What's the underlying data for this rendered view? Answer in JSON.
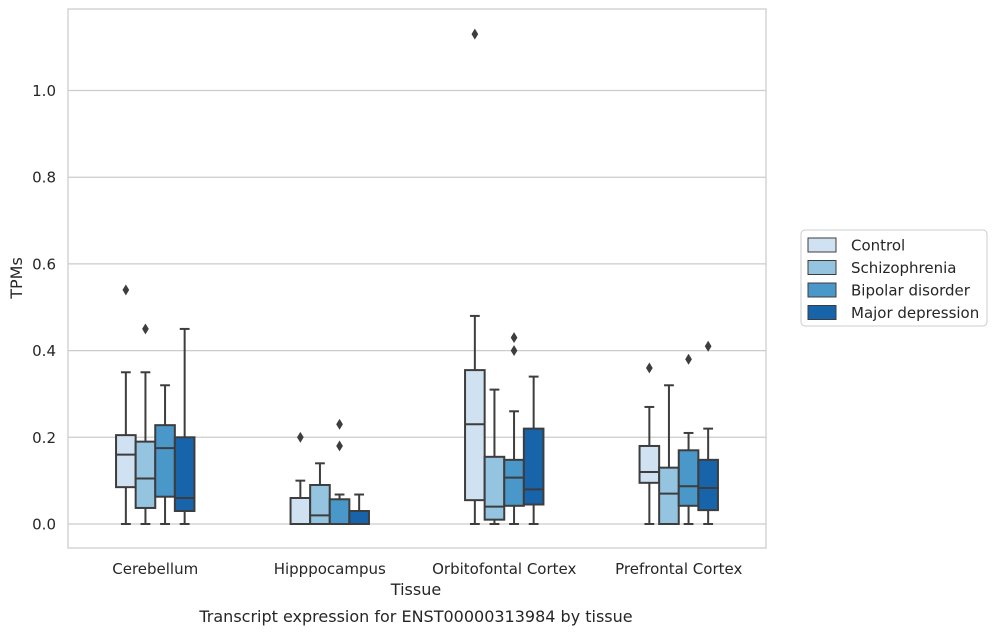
{
  "chart_data": {
    "type": "box",
    "title": "",
    "caption": "Transcript expression for ENST00000313984 by tissue",
    "xlabel": "Tissue",
    "ylabel": "TPMs",
    "ylim": [
      -0.055,
      1.19
    ],
    "yticks": [
      0.0,
      0.2,
      0.4,
      0.6,
      0.8,
      1.0
    ],
    "ytick_labels": [
      "0.0",
      "0.2",
      "0.4",
      "0.6",
      "0.8",
      "1.0"
    ],
    "grid": "horizontal",
    "legend_position": "right-outside",
    "categories": [
      "Cerebellum",
      "Hipppocampus",
      "Orbitofontal Cortex",
      "Prefrontal Cortex"
    ],
    "series": [
      {
        "name": "Control",
        "color": "#d0e1f2",
        "boxes": [
          {
            "whislo": 0.0,
            "q1": 0.085,
            "med": 0.16,
            "q3": 0.205,
            "whishi": 0.35,
            "fliers": [
              0.54
            ]
          },
          {
            "whislo": 0.0,
            "q1": 0.0,
            "med": 0.0,
            "q3": 0.06,
            "whishi": 0.1,
            "fliers": [
              0.2
            ]
          },
          {
            "whislo": 0.0,
            "q1": 0.055,
            "med": 0.23,
            "q3": 0.355,
            "whishi": 0.48,
            "fliers": [
              1.13
            ]
          },
          {
            "whislo": 0.0,
            "q1": 0.095,
            "med": 0.12,
            "q3": 0.18,
            "whishi": 0.27,
            "fliers": [
              0.36
            ]
          }
        ]
      },
      {
        "name": "Schizophrenia",
        "color": "#94c4df",
        "boxes": [
          {
            "whislo": 0.0,
            "q1": 0.037,
            "med": 0.105,
            "q3": 0.19,
            "whishi": 0.35,
            "fliers": [
              0.45
            ]
          },
          {
            "whislo": 0.0,
            "q1": 0.0,
            "med": 0.02,
            "q3": 0.09,
            "whishi": 0.14,
            "fliers": []
          },
          {
            "whislo": 0.0,
            "q1": 0.01,
            "med": 0.04,
            "q3": 0.155,
            "whishi": 0.31,
            "fliers": []
          },
          {
            "whislo": 0.0,
            "q1": 0.0,
            "med": 0.07,
            "q3": 0.13,
            "whishi": 0.32,
            "fliers": []
          }
        ]
      },
      {
        "name": "Bipolar disorder",
        "color": "#4a98c9",
        "boxes": [
          {
            "whislo": 0.0,
            "q1": 0.063,
            "med": 0.175,
            "q3": 0.228,
            "whishi": 0.32,
            "fliers": []
          },
          {
            "whislo": 0.0,
            "q1": 0.0,
            "med": 0.0,
            "q3": 0.057,
            "whishi": 0.068,
            "fliers": [
              0.23,
              0.18
            ]
          },
          {
            "whislo": 0.0,
            "q1": 0.042,
            "med": 0.107,
            "q3": 0.148,
            "whishi": 0.26,
            "fliers": [
              0.43,
              0.4
            ]
          },
          {
            "whislo": 0.0,
            "q1": 0.042,
            "med": 0.087,
            "q3": 0.17,
            "whishi": 0.21,
            "fliers": [
              0.38
            ]
          }
        ]
      },
      {
        "name": "Major depression",
        "color": "#1764ab",
        "boxes": [
          {
            "whislo": 0.0,
            "q1": 0.03,
            "med": 0.06,
            "q3": 0.2,
            "whishi": 0.45,
            "fliers": []
          },
          {
            "whislo": 0.0,
            "q1": 0.0,
            "med": 0.0,
            "q3": 0.03,
            "whishi": 0.068,
            "fliers": []
          },
          {
            "whislo": 0.0,
            "q1": 0.045,
            "med": 0.08,
            "q3": 0.22,
            "whishi": 0.34,
            "fliers": []
          },
          {
            "whislo": 0.0,
            "q1": 0.032,
            "med": 0.083,
            "q3": 0.148,
            "whishi": 0.22,
            "fliers": [
              0.41
            ]
          }
        ]
      }
    ],
    "colors": {
      "edge": "#3d3d3d",
      "grid": "#cccccc",
      "frame": "#cccccc",
      "legend_border": "#cccccc"
    }
  }
}
